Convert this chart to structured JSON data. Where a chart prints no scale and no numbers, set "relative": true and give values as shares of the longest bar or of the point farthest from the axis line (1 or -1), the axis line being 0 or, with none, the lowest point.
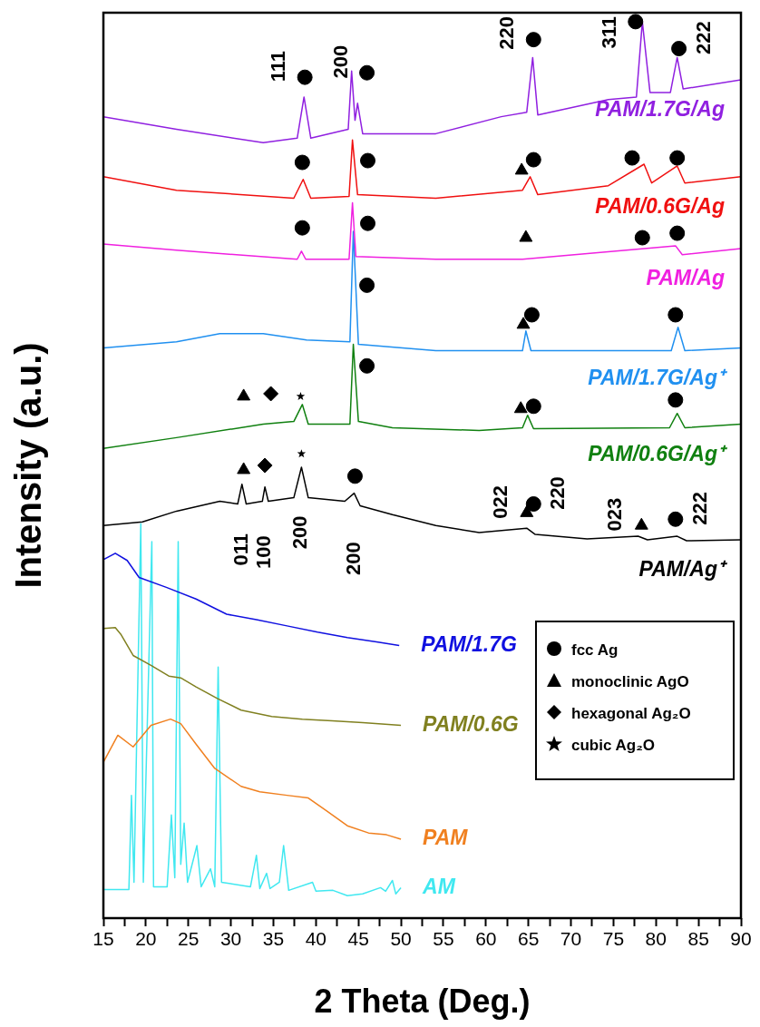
{
  "chart_data": {
    "type": "line",
    "xlabel": "2 Theta (Deg.)",
    "ylabel": "Intensity (a.u.)",
    "relative": true,
    "xlim": [
      15,
      90
    ],
    "xticks": [
      15,
      {
        "value": 17.5,
        "label": null
      },
      20,
      {
        "value": 22.5,
        "label": null
      },
      25,
      {
        "value": 27.5,
        "label": null
      },
      30,
      {
        "value": 32.5,
        "label": null
      },
      35,
      {
        "value": 37.5,
        "label": null
      },
      40,
      {
        "value": 42.5,
        "label": null
      },
      45,
      {
        "value": 47.5,
        "label": null
      },
      50,
      {
        "value": 52.5,
        "label": null
      },
      55,
      {
        "value": 57.5,
        "label": null
      },
      60,
      {
        "value": 62.5,
        "label": null
      },
      65,
      {
        "value": 67.5,
        "label": null
      },
      70,
      {
        "value": 72.5,
        "label": null
      },
      75,
      {
        "value": 77.5,
        "label": null
      },
      80,
      {
        "value": 82.5,
        "label": null
      },
      85,
      {
        "value": 87.5,
        "label": null
      },
      90
    ],
    "legend": "right",
    "annotations": [
      {
        "text": "111",
        "x": 38.7,
        "y": 0.938
      },
      {
        "text": "200",
        "x": 46.0,
        "y": 0.943
      },
      {
        "text": "220",
        "x": 65.6,
        "y": 0.98
      },
      {
        "text": "311",
        "x": 77.6,
        "y": 1.0
      },
      {
        "text": "222",
        "x": 82.7,
        "y": 0.97
      },
      {
        "text": "011",
        "x": 31.3,
        "y": 0.484
      },
      {
        "text": "100",
        "x": 34.0,
        "y": 0.481
      },
      {
        "text": "200",
        "x": 38.3,
        "y": 0.503
      },
      {
        "text": "200",
        "x": 44.5,
        "y": 0.474
      },
      {
        "text": "022",
        "x": 64.8,
        "y": 0.452
      },
      {
        "text": "220",
        "x": 65.6,
        "y": 0.462
      },
      {
        "text": "023",
        "x": 78.3,
        "y": 0.438
      },
      {
        "text": "222",
        "x": 82.3,
        "y": 0.445
      }
    ],
    "series": [
      {
        "name": "PAM/1.7G/Ag",
        "color": "#9020e0",
        "x": [
          15,
          23.6,
          33.8,
          37.8,
          38.6,
          39.4,
          43.8,
          44.2,
          44.6,
          44.9,
          45.5,
          54.1,
          61.8,
          64.8,
          65.5,
          66.1,
          74.4,
          77.7,
          78.4,
          79.3,
          81.7,
          82.5,
          83.2,
          90
        ],
        "values": [
          0.894,
          0.88,
          0.865,
          0.87,
          0.916,
          0.87,
          0.88,
          0.945,
          0.89,
          0.909,
          0.875,
          0.875,
          0.894,
          0.899,
          0.96,
          0.896,
          0.913,
          0.916,
          1.0,
          0.921,
          0.921,
          0.96,
          0.925,
          0.935
        ]
      },
      {
        "name": "PAM/0.6G/Ag",
        "color": "#f01010",
        "x": [
          15,
          23.6,
          37.4,
          38.5,
          39.4,
          43.9,
          44.3,
          44.9,
          54.1,
          64.3,
          65.2,
          66.1,
          74.4,
          78.6,
          79.5,
          82.5,
          83.4,
          90
        ],
        "values": [
          0.827,
          0.812,
          0.803,
          0.824,
          0.803,
          0.805,
          0.868,
          0.807,
          0.803,
          0.812,
          0.827,
          0.807,
          0.817,
          0.841,
          0.82,
          0.839,
          0.82,
          0.827
        ]
      },
      {
        "name": "PAM/Ag",
        "color": "#f020e0",
        "x": [
          15,
          23.6,
          37.8,
          38.3,
          38.8,
          43.9,
          44.3,
          44.7,
          54.1,
          64.3,
          82.3,
          83.1,
          90
        ],
        "values": [
          0.752,
          0.745,
          0.735,
          0.744,
          0.735,
          0.735,
          0.798,
          0.738,
          0.735,
          0.735,
          0.75,
          0.74,
          0.747
        ]
      },
      {
        "name": "PAM/1.7G/Ag⁺",
        "color": "#2090f0",
        "x": [
          15,
          23.6,
          28.7,
          33.8,
          38.9,
          44.0,
          44.4,
          45.0,
          54.1,
          64.3,
          64.7,
          65.3,
          81.8,
          82.6,
          83.4,
          90
        ],
        "values": [
          0.636,
          0.643,
          0.652,
          0.652,
          0.645,
          0.643,
          0.766,
          0.64,
          0.633,
          0.633,
          0.655,
          0.633,
          0.633,
          0.659,
          0.633,
          0.636
        ]
      },
      {
        "name": "PAM/0.6G/Ag⁺",
        "color": "#108010",
        "x": [
          15,
          23.6,
          33.8,
          37.4,
          38.4,
          39.1,
          44.0,
          44.4,
          45.0,
          49.0,
          59.2,
          64.3,
          64.9,
          65.6,
          81.6,
          82.5,
          83.4,
          90
        ],
        "values": [
          0.524,
          0.536,
          0.551,
          0.554,
          0.573,
          0.551,
          0.551,
          0.64,
          0.554,
          0.547,
          0.544,
          0.547,
          0.561,
          0.546,
          0.547,
          0.563,
          0.547,
          0.551
        ]
      },
      {
        "name": "PAM/Ag⁺",
        "color": "#000000",
        "x": [
          15,
          19.6,
          23.6,
          28.7,
          30.8,
          31.3,
          31.8,
          33.7,
          34.0,
          34.4,
          37.4,
          38.3,
          39.1,
          43.4,
          44.5,
          45.2,
          49.0,
          54.1,
          59.2,
          64.8,
          65.8,
          71.9,
          77.9,
          79.0,
          82.5,
          83.6,
          90
        ],
        "values": [
          0.438,
          0.442,
          0.454,
          0.465,
          0.462,
          0.484,
          0.462,
          0.465,
          0.481,
          0.465,
          0.469,
          0.503,
          0.469,
          0.465,
          0.474,
          0.46,
          0.45,
          0.438,
          0.43,
          0.435,
          0.428,
          0.423,
          0.426,
          0.422,
          0.426,
          0.421,
          0.422
        ]
      },
      {
        "name": "PAM/1.7G",
        "color": "#1010e0",
        "x": [
          15,
          16.4,
          17.8,
          19.2,
          22.4,
          25.9,
          29.5,
          33.0,
          36.6,
          40.2,
          43.7,
          47.3,
          49.8
        ],
        "values": [
          0.4,
          0.407,
          0.399,
          0.38,
          0.369,
          0.356,
          0.339,
          0.333,
          0.326,
          0.319,
          0.313,
          0.308,
          0.304
        ]
      },
      {
        "name": "PAM/0.6G",
        "color": "#808020",
        "x": [
          15,
          16.4,
          17.1,
          18.5,
          20.6,
          22.7,
          24.1,
          25.9,
          28.4,
          31.2,
          34.8,
          38.4,
          41.9,
          45.5,
          50
        ],
        "values": [
          0.323,
          0.324,
          0.316,
          0.293,
          0.282,
          0.27,
          0.268,
          0.258,
          0.245,
          0.232,
          0.225,
          0.222,
          0.22,
          0.218,
          0.215
        ]
      },
      {
        "name": "PAM",
        "color": "#f08020",
        "x": [
          15,
          16.7,
          18.5,
          20.6,
          22.9,
          24.1,
          25.9,
          28.1,
          31.2,
          33.4,
          36.6,
          39.1,
          41.2,
          43.7,
          46.2,
          48.3,
          50
        ],
        "values": [
          0.174,
          0.204,
          0.191,
          0.215,
          0.222,
          0.217,
          0.194,
          0.167,
          0.147,
          0.141,
          0.137,
          0.134,
          0.12,
          0.103,
          0.095,
          0.093,
          0.088
        ]
      },
      {
        "name": "AM",
        "color": "#40e8f0",
        "x": [
          15,
          18.0,
          18.3,
          18.6,
          19.4,
          19.7,
          20.7,
          20.9,
          22.5,
          23.0,
          23.4,
          23.8,
          24.1,
          24.5,
          24.9,
          26.0,
          26.5,
          27.6,
          28.1,
          28.5,
          28.9,
          32.3,
          32.6,
          33.0,
          33.4,
          34.2,
          34.6,
          35.7,
          36.2,
          36.8,
          39.6,
          40.0,
          42.0,
          43.7,
          45.5,
          47.6,
          48.2,
          49.0,
          49.4,
          50.0
        ],
        "values": [
          0.032,
          0.032,
          0.137,
          0.04,
          0.44,
          0.04,
          0.42,
          0.035,
          0.035,
          0.115,
          0.045,
          0.42,
          0.06,
          0.106,
          0.04,
          0.081,
          0.035,
          0.055,
          0.035,
          0.28,
          0.04,
          0.035,
          0.05,
          0.07,
          0.033,
          0.05,
          0.033,
          0.04,
          0.081,
          0.031,
          0.04,
          0.03,
          0.031,
          0.025,
          0.027,
          0.034,
          0.03,
          0.042,
          0.027,
          0.034
        ]
      },
      {
        "name": "fcc Ag",
        "type": "scatter",
        "marker": "circle",
        "color": "#000000",
        "x": [
          38.7,
          46.0,
          65.6,
          77.6,
          82.7,
          38.4,
          46.1,
          65.6,
          77.2,
          82.5,
          38.4,
          46.1,
          78.4,
          82.5,
          46.0,
          65.4,
          82.3,
          46.0,
          65.6,
          82.3,
          44.6,
          65.6,
          82.3
        ],
        "values": [
          0.938,
          0.943,
          0.98,
          1.0,
          0.97,
          0.843,
          0.845,
          0.846,
          0.848,
          0.848,
          0.77,
          0.775,
          0.759,
          0.764,
          0.706,
          0.673,
          0.673,
          0.616,
          0.571,
          0.578,
          0.493,
          0.462,
          0.445
        ]
      },
      {
        "name": "monoclinic AgO",
        "type": "scatter",
        "marker": "triangle",
        "color": "#000000",
        "x": [
          64.2,
          64.7,
          64.4,
          31.5,
          64.1,
          31.5,
          64.8,
          78.3
        ],
        "values": [
          0.834,
          0.759,
          0.662,
          0.582,
          0.568,
          0.5,
          0.452,
          0.438
        ]
      },
      {
        "name": "hexagonal Ag₂O",
        "type": "scatter",
        "marker": "diamond",
        "color": "#000000",
        "x": [
          34.7,
          34.0
        ],
        "values": [
          0.585,
          0.505
        ]
      },
      {
        "name": "cubic Ag₂O",
        "type": "scatter",
        "marker": "star",
        "color": "#000000",
        "x": [
          38.2,
          38.3
        ],
        "values": [
          0.582,
          0.518
        ]
      }
    ]
  }
}
